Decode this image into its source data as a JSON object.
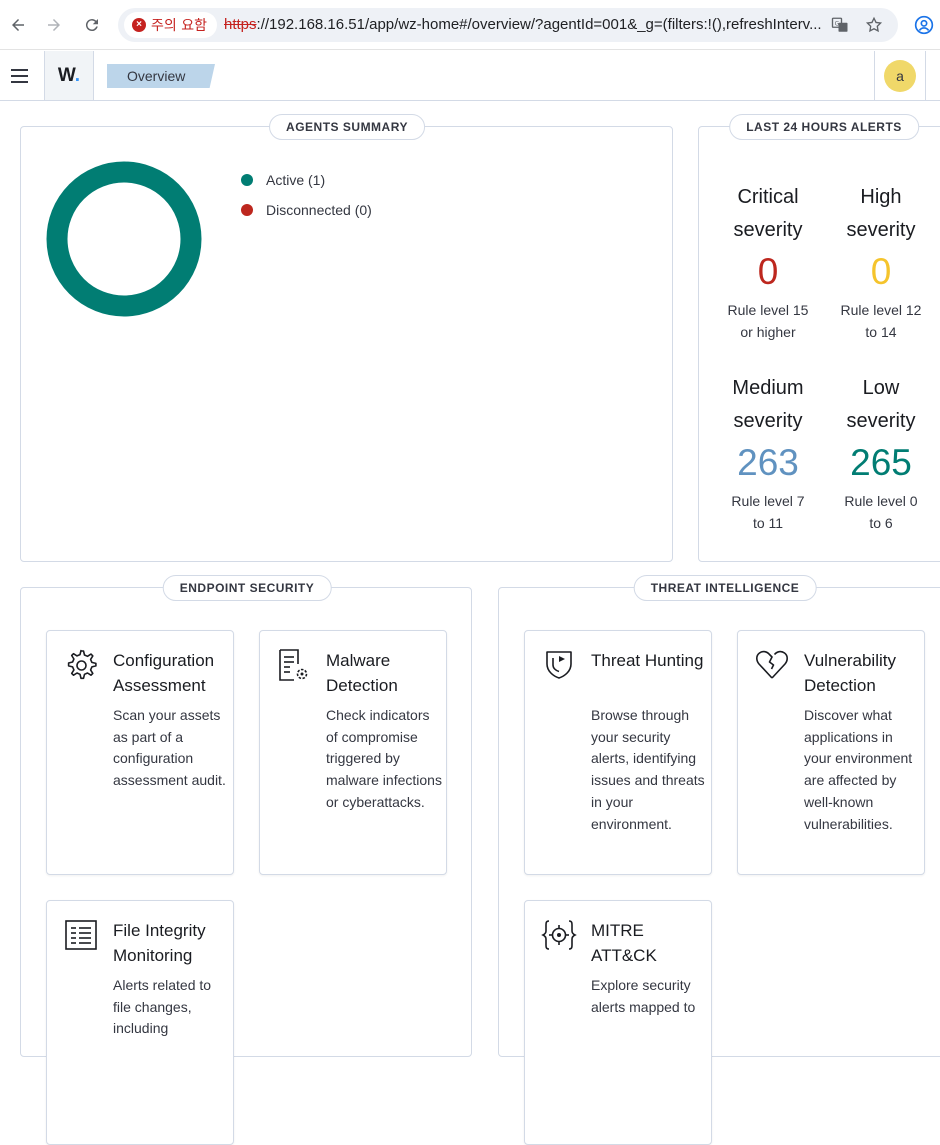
{
  "browser": {
    "security_label": "주의 요함",
    "url_scheme": "https",
    "url_rest": "://192.168.16.51/app/wz-home#/overview/?agentId=001&_g=(filters:!(),refreshInterv..."
  },
  "header": {
    "logo": "W",
    "breadcrumb": "Overview",
    "avatar_initial": "a"
  },
  "agents_summary": {
    "title": "AGENTS SUMMARY",
    "legend": [
      {
        "label": "Active (1)",
        "color": "#017d73"
      },
      {
        "label": "Disconnected (0)",
        "color": "#bd271e"
      }
    ],
    "donut": {
      "active": 1,
      "disconnected": 0,
      "color": "#017d73"
    }
  },
  "alerts": {
    "title": "LAST 24 HOURS ALERTS",
    "items": [
      {
        "label1": "Critical",
        "label2": "severity",
        "value": "0",
        "desc1": "Rule level 15",
        "desc2": "or higher",
        "color": "#bd271e"
      },
      {
        "label1": "High",
        "label2": "severity",
        "value": "0",
        "desc1": "Rule level 12",
        "desc2": "to 14",
        "color": "#f5c42c"
      },
      {
        "label1": "Medium",
        "label2": "severity",
        "value": "263",
        "desc1": "Rule level 7",
        "desc2": "to 11",
        "color": "#6092c0"
      },
      {
        "label1": "Low",
        "label2": "severity",
        "value": "265",
        "desc1": "Rule level 0",
        "desc2": "to 6",
        "color": "#017d73"
      }
    ]
  },
  "endpoint": {
    "title": "ENDPOINT SECURITY",
    "cards": [
      {
        "icon": "gear-icon",
        "title": "Configuration Assessment",
        "desc": "Scan your assets as part of a configuration assessment audit."
      },
      {
        "icon": "document-gear-icon",
        "title": "Malware Detection",
        "desc": "Check indicators of compromise triggered by malware infections or cyberattacks."
      },
      {
        "icon": "list-document-icon",
        "title": "File Integrity Monitoring",
        "desc": "Alerts related to file changes, including"
      }
    ]
  },
  "threat": {
    "title": "THREAT INTELLIGENCE",
    "cards": [
      {
        "icon": "shield-icon",
        "title": "Threat Hunting",
        "desc": "Browse through your security alerts, identifying issues and threats in your environment."
      },
      {
        "icon": "heart-broken-icon",
        "title": "Vulnerability Detection",
        "desc": "Discover what applications in your environment are affected by well-known vulnerabilities."
      },
      {
        "icon": "crosshair-icon",
        "title": "MITRE ATT&CK",
        "desc": "Explore security alerts mapped to"
      }
    ]
  }
}
